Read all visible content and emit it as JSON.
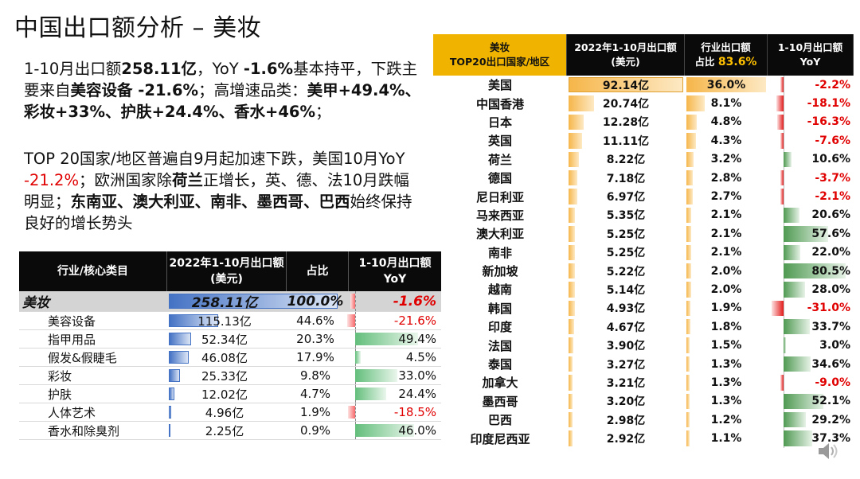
{
  "title": "中国出口额分析 – 美妆",
  "para1": [
    {
      "t": "1-10月出口额",
      "b": false
    },
    {
      "t": "258.11亿",
      "b": true
    },
    {
      "t": "，YoY ",
      "b": false
    },
    {
      "t": "-1.6%",
      "b": true
    },
    {
      "t": "基本持平，下跌主要来自",
      "b": false
    },
    {
      "t": "美容设备 -21.6%",
      "b": true
    },
    {
      "t": "；高增速品类：",
      "b": false
    },
    {
      "t": "美甲+49.4%、彩妆+33%、护肤+24.4%、香水+46%",
      "b": true
    },
    {
      "t": "；",
      "b": false
    }
  ],
  "para2": [
    {
      "t": "TOP 20国家/地区普遍自9月起加速下跌，美国10月YoY ",
      "b": false
    },
    {
      "t": "-21.2%",
      "b": false,
      "red": true
    },
    {
      "t": "；欧洲国家除",
      "b": false
    },
    {
      "t": "荷兰",
      "b": true
    },
    {
      "t": "正增长，英、德、法10月跌幅明显；",
      "b": false
    },
    {
      "t": "东南亚、澳大利亚、南非、墨西哥、巴西",
      "b": true
    },
    {
      "t": "始终保持良好的增长势头",
      "b": false
    }
  ],
  "left_table": {
    "headers": [
      "行业/核心类目",
      "2022年1-10月出口额\n(美元)",
      "占比",
      "1-10月出口额\nYoY"
    ],
    "total": {
      "name": "美妆",
      "amount": "258.11亿",
      "share": "100.0%",
      "yoy": "-1.6%",
      "amount_val": 258.11,
      "yoy_val": -1.6
    },
    "rows": [
      {
        "name": "美容设备",
        "amount": "115.13亿",
        "share": "44.6%",
        "yoy": "-21.6%",
        "amount_val": 115.13,
        "yoy_val": -21.6
      },
      {
        "name": "指甲用品",
        "amount": "52.34亿",
        "share": "20.3%",
        "yoy": "49.4%",
        "amount_val": 52.34,
        "yoy_val": 49.4
      },
      {
        "name": "假发&假睫毛",
        "amount": "46.08亿",
        "share": "17.9%",
        "yoy": "4.5%",
        "amount_val": 46.08,
        "yoy_val": 4.5
      },
      {
        "name": "彩妆",
        "amount": "25.33亿",
        "share": "9.8%",
        "yoy": "33.0%",
        "amount_val": 25.33,
        "yoy_val": 33.0
      },
      {
        "name": "护肤",
        "amount": "12.02亿",
        "share": "4.7%",
        "yoy": "24.4%",
        "amount_val": 12.02,
        "yoy_val": 24.4
      },
      {
        "name": "人体艺术",
        "amount": "4.96亿",
        "share": "1.9%",
        "yoy": "-18.5%",
        "amount_val": 4.96,
        "yoy_val": -18.5
      },
      {
        "name": "香水和除臭剂",
        "amount": "2.25亿",
        "share": "0.9%",
        "yoy": "46.0%",
        "amount_val": 2.25,
        "yoy_val": 46.0
      }
    ]
  },
  "right_table": {
    "headers": [
      "美妆\nTOP20出口国家/地区",
      "2022年1-10月出口额\n(美元)",
      "行业出口额\n占比",
      "1-10月出口额\nYoY"
    ],
    "share_highlight": "83.6%",
    "rows": [
      {
        "name": "美国",
        "amount": "92.14亿",
        "share": "36.0%",
        "yoy": "-2.2%",
        "amount_val": 92.14,
        "share_val": 36.0,
        "yoy_val": -2.2
      },
      {
        "name": "中国香港",
        "amount": "20.74亿",
        "share": "8.1%",
        "yoy": "-18.1%",
        "amount_val": 20.74,
        "share_val": 8.1,
        "yoy_val": -18.1
      },
      {
        "name": "日本",
        "amount": "12.28亿",
        "share": "4.8%",
        "yoy": "-16.3%",
        "amount_val": 12.28,
        "share_val": 4.8,
        "yoy_val": -16.3
      },
      {
        "name": "英国",
        "amount": "11.11亿",
        "share": "4.3%",
        "yoy": "-7.6%",
        "amount_val": 11.11,
        "share_val": 4.3,
        "yoy_val": -7.6
      },
      {
        "name": "荷兰",
        "amount": "8.22亿",
        "share": "3.2%",
        "yoy": "10.6%",
        "amount_val": 8.22,
        "share_val": 3.2,
        "yoy_val": 10.6
      },
      {
        "name": "德国",
        "amount": "7.18亿",
        "share": "2.8%",
        "yoy": "-3.7%",
        "amount_val": 7.18,
        "share_val": 2.8,
        "yoy_val": -3.7
      },
      {
        "name": "尼日利亚",
        "amount": "6.97亿",
        "share": "2.7%",
        "yoy": "-2.1%",
        "amount_val": 6.97,
        "share_val": 2.7,
        "yoy_val": -2.1
      },
      {
        "name": "马来西亚",
        "amount": "5.35亿",
        "share": "2.1%",
        "yoy": "20.6%",
        "amount_val": 5.35,
        "share_val": 2.1,
        "yoy_val": 20.6
      },
      {
        "name": "澳大利亚",
        "amount": "5.25亿",
        "share": "2.1%",
        "yoy": "57.6%",
        "amount_val": 5.25,
        "share_val": 2.1,
        "yoy_val": 57.6
      },
      {
        "name": "南非",
        "amount": "5.25亿",
        "share": "2.1%",
        "yoy": "22.0%",
        "amount_val": 5.25,
        "share_val": 2.1,
        "yoy_val": 22.0
      },
      {
        "name": "新加坡",
        "amount": "5.22亿",
        "share": "2.0%",
        "yoy": "80.5%",
        "amount_val": 5.22,
        "share_val": 2.0,
        "yoy_val": 80.5
      },
      {
        "name": "越南",
        "amount": "5.14亿",
        "share": "2.0%",
        "yoy": "28.0%",
        "amount_val": 5.14,
        "share_val": 2.0,
        "yoy_val": 28.0
      },
      {
        "name": "韩国",
        "amount": "4.93亿",
        "share": "1.9%",
        "yoy": "-31.0%",
        "amount_val": 4.93,
        "share_val": 1.9,
        "yoy_val": -31.0
      },
      {
        "name": "印度",
        "amount": "4.67亿",
        "share": "1.8%",
        "yoy": "33.7%",
        "amount_val": 4.67,
        "share_val": 1.8,
        "yoy_val": 33.7
      },
      {
        "name": "法国",
        "amount": "3.90亿",
        "share": "1.5%",
        "yoy": "3.0%",
        "amount_val": 3.9,
        "share_val": 1.5,
        "yoy_val": 3.0
      },
      {
        "name": "泰国",
        "amount": "3.27亿",
        "share": "1.3%",
        "yoy": "34.6%",
        "amount_val": 3.27,
        "share_val": 1.3,
        "yoy_val": 34.6
      },
      {
        "name": "加拿大",
        "amount": "3.21亿",
        "share": "1.3%",
        "yoy": "-9.0%",
        "amount_val": 3.21,
        "share_val": 1.3,
        "yoy_val": -9.0
      },
      {
        "name": "墨西哥",
        "amount": "3.20亿",
        "share": "1.3%",
        "yoy": "52.1%",
        "amount_val": 3.2,
        "share_val": 1.3,
        "yoy_val": 52.1
      },
      {
        "name": "巴西",
        "amount": "2.98亿",
        "share": "1.2%",
        "yoy": "29.2%",
        "amount_val": 2.98,
        "share_val": 1.2,
        "yoy_val": 29.2
      },
      {
        "name": "印度尼西亚",
        "amount": "2.92亿",
        "share": "1.1%",
        "yoy": "37.3%",
        "amount_val": 2.92,
        "share_val": 1.1,
        "yoy_val": 37.3
      }
    ]
  },
  "icons": {
    "speaker": "speaker-icon"
  }
}
